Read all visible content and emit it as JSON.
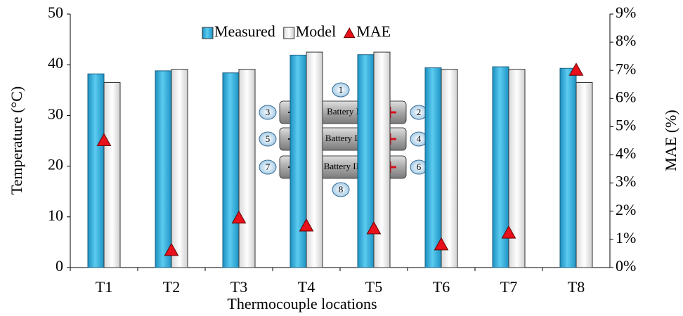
{
  "chart_data": {
    "type": "bar",
    "categories": [
      "T1",
      "T2",
      "T3",
      "T4",
      "T5",
      "T6",
      "T7",
      "T8"
    ],
    "series": [
      {
        "name": "Measured",
        "type": "bar",
        "color": "#35b3df",
        "values": [
          38.2,
          38.8,
          38.4,
          41.9,
          42.0,
          39.4,
          39.6,
          39.3
        ]
      },
      {
        "name": "Model",
        "type": "bar",
        "color": "#f2f2f2",
        "values": [
          36.5,
          39.1,
          39.1,
          42.5,
          42.5,
          39.1,
          39.1,
          36.5
        ]
      },
      {
        "name": "MAE",
        "type": "scatter",
        "color": "#e8101a",
        "axis": "y2",
        "values": [
          4.5,
          0.6,
          1.75,
          1.47,
          1.37,
          0.8,
          1.22,
          7.0
        ]
      }
    ],
    "xlabel": "Thermocouple locations",
    "ylabel": "Temperature (°C)",
    "y2label": "MAE (%)",
    "ylim": [
      0,
      50
    ],
    "yticks": [
      0,
      10,
      20,
      30,
      40,
      50
    ],
    "y2lim": [
      0,
      9
    ],
    "y2ticks": [
      {
        "value": 0,
        "label": "0%"
      },
      {
        "value": 1,
        "label": "1%"
      },
      {
        "value": 2,
        "label": "2%"
      },
      {
        "value": 3,
        "label": "3%"
      },
      {
        "value": 4,
        "label": "4%"
      },
      {
        "value": 5,
        "label": "5%"
      },
      {
        "value": 6,
        "label": "6%"
      },
      {
        "value": 7,
        "label": "7%"
      },
      {
        "value": 8,
        "label": "8%"
      },
      {
        "value": 9,
        "label": "9%"
      }
    ],
    "legend": "top"
  },
  "inset": {
    "batteries": [
      "Battery I",
      "Battery II",
      "Battery III"
    ],
    "terminals": [
      "1",
      "2",
      "3",
      "4",
      "5",
      "6",
      "7",
      "8"
    ]
  }
}
